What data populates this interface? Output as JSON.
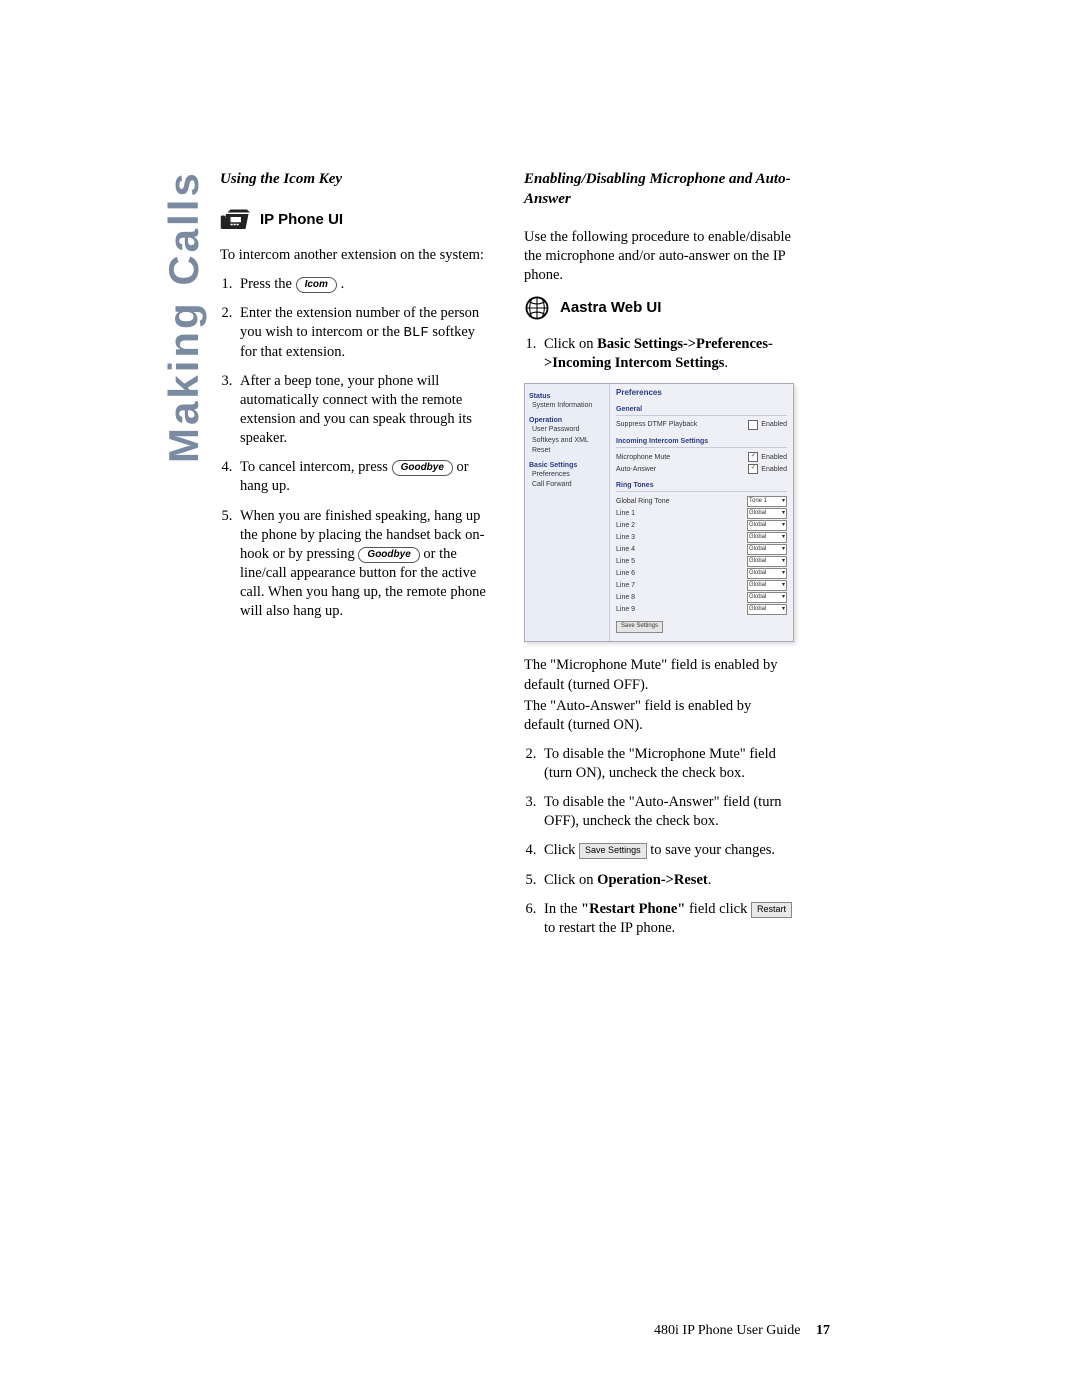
{
  "sidetab": "Making Calls",
  "left": {
    "heading": "Using the Icom Key",
    "ui_label": "IP Phone UI",
    "intro": "To intercom another extension on the system:",
    "step1_a": "Press the ",
    "step1_key": "Icom",
    "step1_b": ".",
    "step2": "Enter the extension number of the person you wish to intercom or the ",
    "step2_mono": "BLF",
    "step2_b": " softkey for that extension.",
    "step3": "After a beep tone, your phone will automatically connect with the remote extension and you can speak through its speaker.",
    "step4_a": "To cancel intercom, press ",
    "step4_key": "Goodbye",
    "step4_b": " or hang up.",
    "step5_a": "When you are finished speaking, hang up the phone by placing the handset back on-hook or by pressing ",
    "step5_key": "Goodbye",
    "step5_b": " or the line/call appearance button for the active call. When you hang up, the remote phone will also hang up."
  },
  "right": {
    "heading": "Enabling/Disabling Microphone and Auto-Answer",
    "intro": "Use the following procedure to enable/disable the microphone and/or auto-answer on the IP phone.",
    "ui_label": "Aastra Web UI",
    "step1_a": "Click on ",
    "step1_bold": "Basic Settings->Preferences->Incoming Intercom Settings",
    "step1_b": ".",
    "post1": "The \"Microphone Mute\" field is enabled by default (turned OFF).",
    "post2": "The \"Auto-Answer\" field is enabled by default (turned ON).",
    "step2": "To disable the \"Microphone Mute\" field (turn ON), uncheck the check box.",
    "step3": "To disable the \"Auto-Answer\" field (turn OFF), uncheck the check box.",
    "step4_a": "Click ",
    "step4_btn": "Save Settings",
    "step4_b": " to save your changes.",
    "step5_a": "Click on ",
    "step5_bold": "Operation->Reset",
    "step5_b": ".",
    "step6_a": "In the ",
    "step6_bold": "\"Restart Phone\"",
    "step6_b": " field click ",
    "step6_btn": "Restart",
    "step6_c": " to restart the IP phone."
  },
  "screenshot": {
    "title": "Preferences",
    "side_groups": [
      {
        "group": "Status",
        "items": [
          "System Information"
        ]
      },
      {
        "group": "Operation",
        "items": [
          "User Password",
          "Softkeys and XML",
          "Reset"
        ]
      },
      {
        "group": "Basic Settings",
        "items": [
          "Preferences",
          "Call Forward"
        ]
      }
    ],
    "sec_general": "General",
    "row_suppress": "Suppress DTMF Playback",
    "row_suppress_enabled": "Enabled",
    "sec_intercom": "Incoming Intercom Settings",
    "row_mic": "Microphone Mute",
    "row_auto": "Auto-Answer",
    "row_enabled": "Enabled",
    "sec_ring": "Ring Tones",
    "ring_rows": [
      {
        "label": "Global Ring Tone",
        "val": "Tone 1"
      },
      {
        "label": "Line 1",
        "val": "Global"
      },
      {
        "label": "Line 2",
        "val": "Global"
      },
      {
        "label": "Line 3",
        "val": "Global"
      },
      {
        "label": "Line 4",
        "val": "Global"
      },
      {
        "label": "Line 5",
        "val": "Global"
      },
      {
        "label": "Line 6",
        "val": "Global"
      },
      {
        "label": "Line 7",
        "val": "Global"
      },
      {
        "label": "Line 8",
        "val": "Global"
      },
      {
        "label": "Line 9",
        "val": "Global"
      }
    ],
    "save_btn": "Save Settings"
  },
  "footer": {
    "text": "480i IP Phone User Guide",
    "page": "17"
  }
}
